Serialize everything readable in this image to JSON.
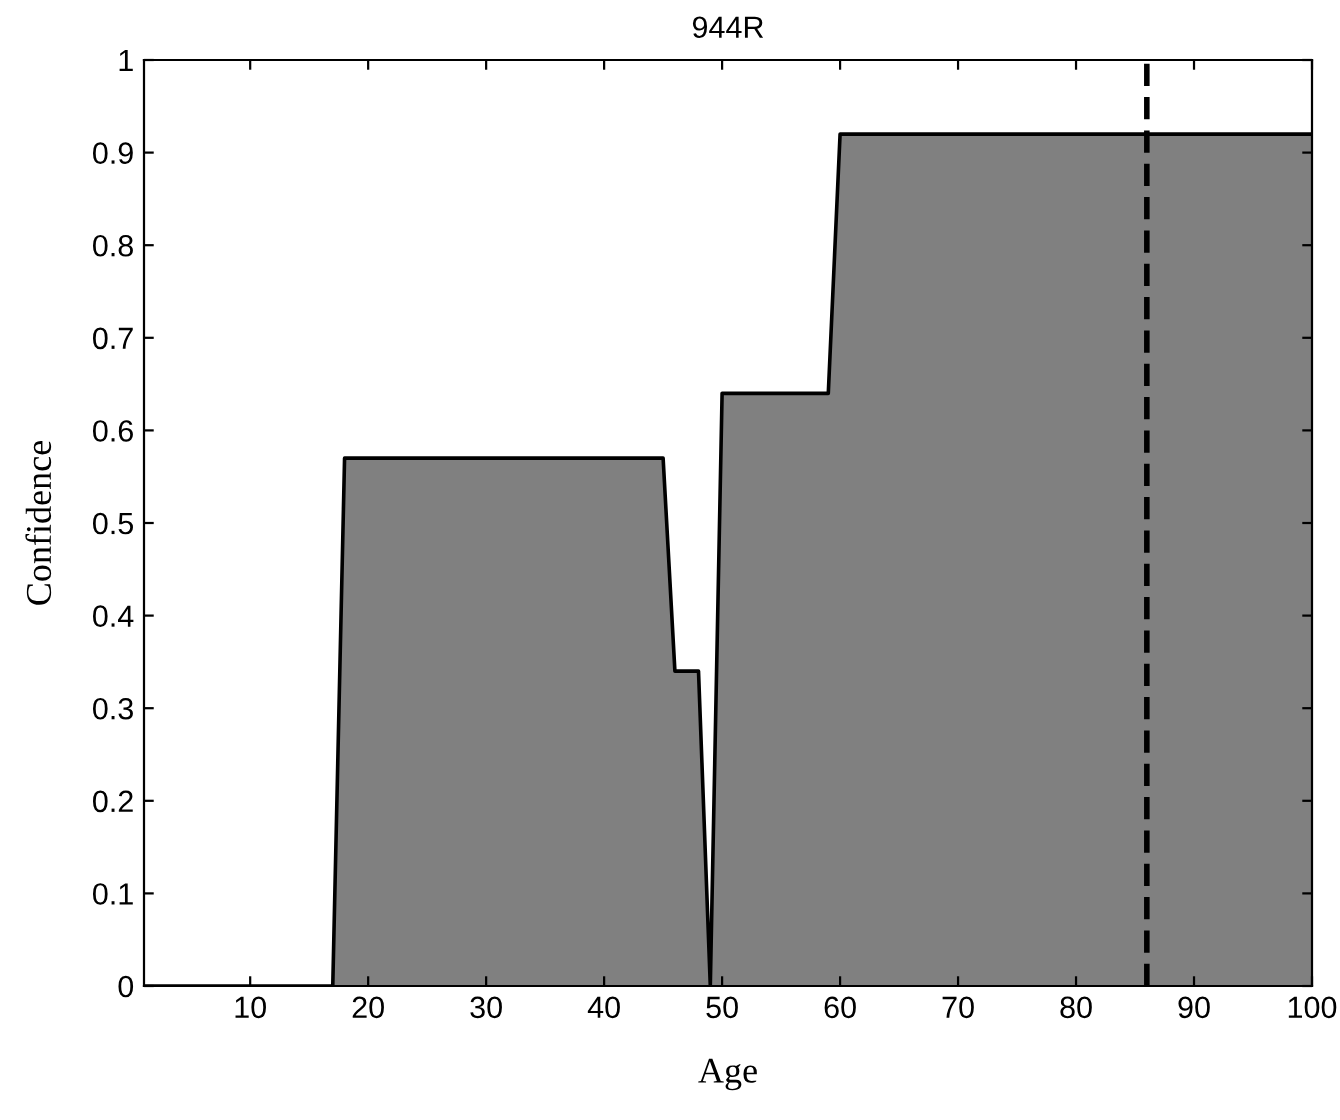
{
  "chart_data": {
    "type": "area",
    "title": "944R",
    "xlabel": "Age",
    "ylabel": "Confidence",
    "series": [
      {
        "color": "#808080",
        "x": [
          1,
          17,
          18,
          45,
          46,
          48,
          49,
          50,
          59,
          60,
          100
        ],
        "values": [
          0,
          0,
          0.57,
          0.57,
          0.34,
          0.34,
          0,
          0.64,
          0.64,
          0.92,
          0.92
        ]
      }
    ],
    "xlim": [
      1,
      100
    ],
    "xticks": [
      10,
      20,
      30,
      40,
      50,
      60,
      70,
      80,
      90,
      100
    ],
    "ylim": [
      0,
      1
    ],
    "yticks": [
      0,
      0.1,
      0.2,
      0.3,
      0.4,
      0.5,
      0.6,
      0.7,
      0.8,
      0.9,
      1
    ],
    "ref_lines": [
      {
        "axis": "x",
        "value": 86,
        "color": "#000000",
        "line_style": "dashed"
      }
    ],
    "grid": false,
    "legend": false
  }
}
